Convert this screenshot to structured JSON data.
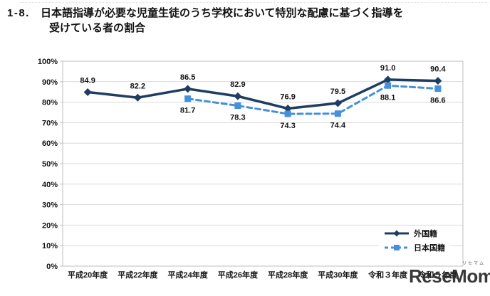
{
  "title": {
    "number": "1-8.",
    "line1": "日本語指導が必要な児童生徒のうち学校において特別な配慮に基づく指導を",
    "line2": "受けている者の割合"
  },
  "watermark": {
    "text": "ReseMom.",
    "ruby": "リセマム"
  },
  "chart_data": {
    "type": "line",
    "title": "日本語指導が必要な児童生徒のうち学校において特別な配慮に基づく指導を受けている者の割合",
    "categories": [
      "平成20年度",
      "平成22年度",
      "平成24年度",
      "平成26年度",
      "平成28年度",
      "平成30年度",
      "令和３年度",
      "令和５年度"
    ],
    "series": [
      {
        "name": "外国籍",
        "values": [
          84.9,
          82.2,
          86.5,
          82.9,
          76.9,
          79.5,
          91.0,
          90.4
        ],
        "labels": [
          "84.9",
          "82.2",
          "86.5",
          "82.9",
          "76.9",
          "79.5",
          "91.0",
          "90.4"
        ],
        "color": "#1F3D63",
        "marker": "diamond",
        "line_style": "solid",
        "label_position": "above"
      },
      {
        "name": "日本国籍",
        "values": [
          null,
          null,
          81.7,
          78.3,
          74.3,
          74.4,
          88.1,
          86.6
        ],
        "labels": [
          null,
          null,
          "81.7",
          "78.3",
          "74.3",
          "74.4",
          "88.1",
          "86.6"
        ],
        "color": "#4490DB",
        "marker": "square",
        "line_style": "dashed",
        "label_position": "below"
      }
    ],
    "ylim": [
      0,
      100
    ],
    "yticks": [
      "0%",
      "10%",
      "20%",
      "30%",
      "40%",
      "50%",
      "60%",
      "70%",
      "80%",
      "90%",
      "100%"
    ],
    "grid": true,
    "legend_position": "inside-bottom-right",
    "colors": {
      "grid": "#D9D9D9",
      "plot_border": "#BFBFBF",
      "text": "#141414"
    }
  }
}
